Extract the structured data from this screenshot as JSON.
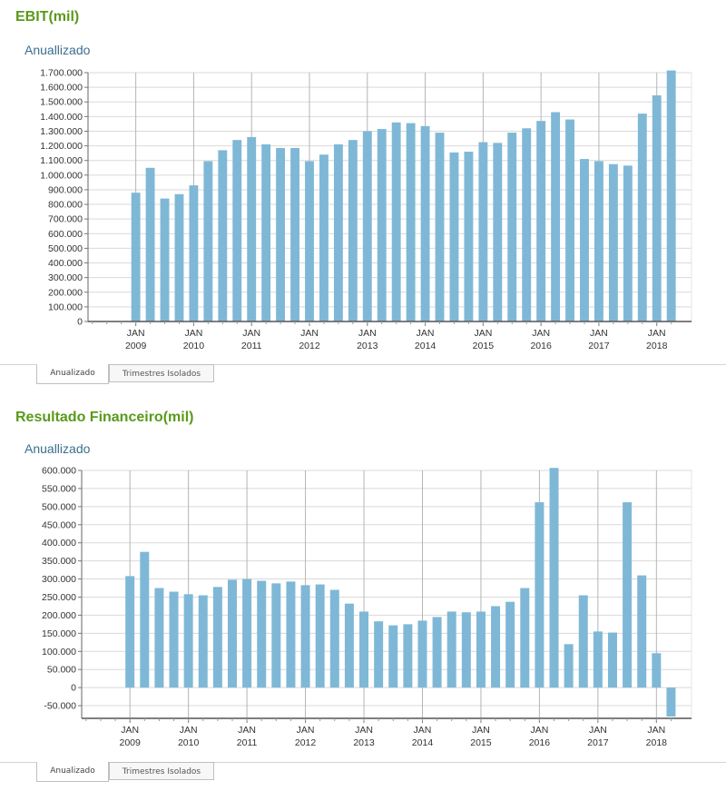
{
  "charts": [
    {
      "title": "EBIT(mil)",
      "subtitle": "Anuallizado",
      "tabs": [
        {
          "label": "Anualizado",
          "active": true
        },
        {
          "label": "Trimestres Isolados",
          "active": false
        }
      ]
    },
    {
      "title": "Resultado Financeiro(mil)",
      "subtitle": "Anuallizado",
      "tabs": [
        {
          "label": "Anualizado",
          "active": true
        },
        {
          "label": "Trimestres Isolados",
          "active": false
        }
      ]
    }
  ],
  "colors": {
    "bar": "#7fb8d6",
    "title": "#5a9a1a",
    "subtitle": "#3b6e8f",
    "grid": "#d9d9d9",
    "year_line": "#b5b5b5"
  },
  "chart_data": [
    {
      "type": "bar",
      "title": "EBIT(mil)",
      "subtitle": "Anuallizado",
      "xlabel": "",
      "ylabel": "",
      "ylim": [
        0,
        1700000
      ],
      "yticks": [
        0,
        100000,
        200000,
        300000,
        400000,
        500000,
        600000,
        700000,
        800000,
        900000,
        1000000,
        1100000,
        1200000,
        1300000,
        1400000,
        1500000,
        1600000,
        1700000
      ],
      "ytick_labels": [
        "0",
        "100.000",
        "200.000",
        "300.000",
        "400.000",
        "500.000",
        "600.000",
        "700.000",
        "800.000",
        "900.000",
        "1.000.000",
        "1.100.000",
        "1.200.000",
        "1.300.000",
        "1.400.000",
        "1.500.000",
        "1.600.000",
        "1.700.000"
      ],
      "x_tick_labels": [
        {
          "month": "JAN",
          "year": "2009"
        },
        {
          "month": "JAN",
          "year": "2010"
        },
        {
          "month": "JAN",
          "year": "2011"
        },
        {
          "month": "JAN",
          "year": "2012"
        },
        {
          "month": "JAN",
          "year": "2013"
        },
        {
          "month": "JAN",
          "year": "2014"
        },
        {
          "month": "JAN",
          "year": "2015"
        },
        {
          "month": "JAN",
          "year": "2016"
        },
        {
          "month": "JAN",
          "year": "2017"
        },
        {
          "month": "JAN",
          "year": "2018"
        }
      ],
      "quarters_before_first_year": 3,
      "grid": true,
      "legend": "none",
      "values": [
        880000,
        1050000,
        840000,
        870000,
        930000,
        1095000,
        1170000,
        1240000,
        1260000,
        1210000,
        1185000,
        1185000,
        1095000,
        1140000,
        1210000,
        1240000,
        1300000,
        1315000,
        1360000,
        1355000,
        1335000,
        1290000,
        1155000,
        1160000,
        1225000,
        1220000,
        1290000,
        1320000,
        1370000,
        1430000,
        1380000,
        1110000,
        1095000,
        1075000,
        1065000,
        1420000,
        1545000,
        1715000
      ]
    },
    {
      "type": "bar",
      "title": "Resultado Financeiro(mil)",
      "subtitle": "Anuallizado",
      "xlabel": "",
      "ylabel": "",
      "ylim": [
        -85000,
        600000
      ],
      "yticks": [
        -50000,
        0,
        50000,
        100000,
        150000,
        200000,
        250000,
        300000,
        350000,
        400000,
        450000,
        500000,
        550000,
        600000
      ],
      "ytick_labels": [
        "-50.000",
        "0",
        "50.000",
        "100.000",
        "150.000",
        "200.000",
        "250.000",
        "300.000",
        "350.000",
        "400.000",
        "450.000",
        "500.000",
        "550.000",
        "600.000"
      ],
      "x_tick_labels": [
        {
          "month": "JAN",
          "year": "2009"
        },
        {
          "month": "JAN",
          "year": "2010"
        },
        {
          "month": "JAN",
          "year": "2011"
        },
        {
          "month": "JAN",
          "year": "2012"
        },
        {
          "month": "JAN",
          "year": "2013"
        },
        {
          "month": "JAN",
          "year": "2014"
        },
        {
          "month": "JAN",
          "year": "2015"
        },
        {
          "month": "JAN",
          "year": "2016"
        },
        {
          "month": "JAN",
          "year": "2017"
        },
        {
          "month": "JAN",
          "year": "2018"
        }
      ],
      "quarters_before_first_year": 3,
      "grid": true,
      "legend": "none",
      "values": [
        308000,
        375000,
        275000,
        265000,
        258000,
        255000,
        278000,
        298000,
        300000,
        295000,
        288000,
        293000,
        283000,
        285000,
        270000,
        232000,
        210000,
        183000,
        172000,
        175000,
        185000,
        195000,
        210000,
        208000,
        210000,
        225000,
        237000,
        275000,
        512000,
        607000,
        120000,
        255000,
        155000,
        152000,
        512000,
        310000,
        95000,
        -80000
      ]
    }
  ]
}
